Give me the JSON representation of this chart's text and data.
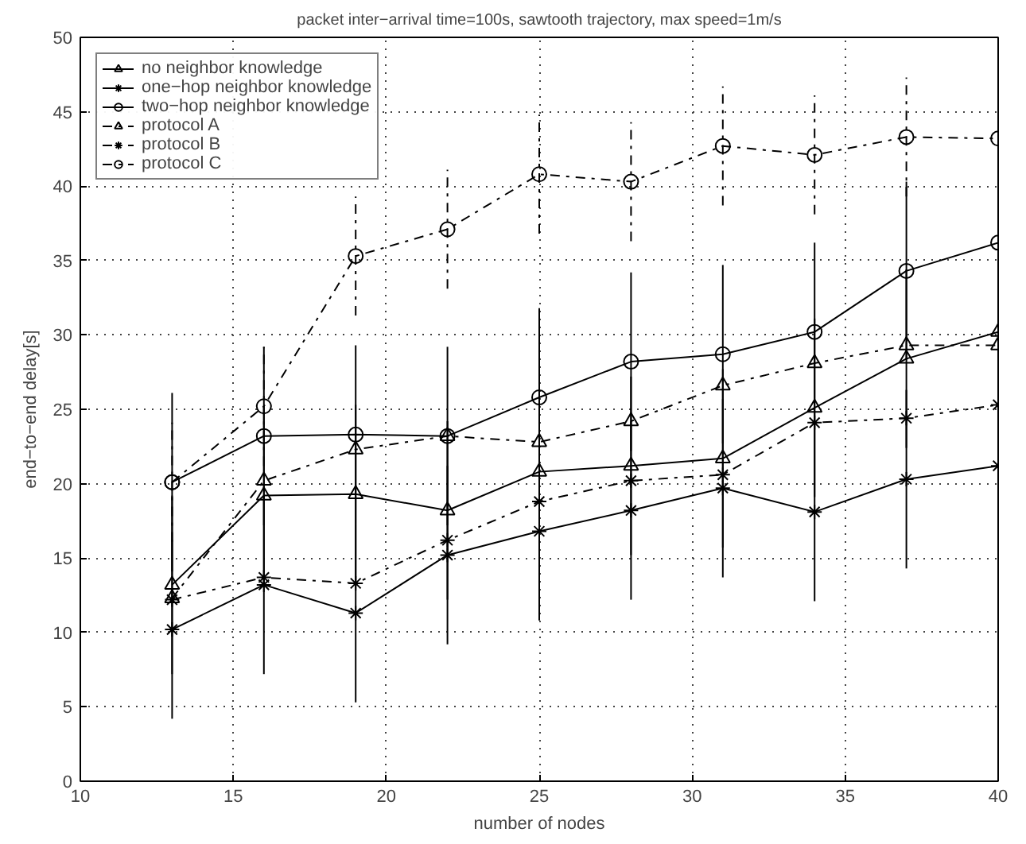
{
  "chart_data": {
    "type": "line",
    "title": "packet inter−arrival time=100s, sawtooth trajectory, max speed=1m/s",
    "xlabel": "number of nodes",
    "ylabel": "end−to−end delay[s]",
    "x": [
      13,
      16,
      19,
      22,
      25,
      28,
      31,
      34,
      37,
      40
    ],
    "xlim": [
      10,
      40
    ],
    "xticks": [
      10,
      15,
      20,
      25,
      30,
      35,
      40
    ],
    "ylim": [
      0,
      50
    ],
    "yticks": [
      0,
      5,
      10,
      15,
      20,
      25,
      30,
      35,
      40,
      45,
      50
    ],
    "grid": true,
    "legend": "top left",
    "series": [
      {
        "name": "no neighbor knowledge",
        "color": "#000000",
        "marker": "triangle",
        "line_style": "solid",
        "values": [
          13.2,
          19.2,
          19.3,
          18.2,
          20.8,
          21.2,
          21.7,
          25.1,
          28.4,
          30.2
        ],
        "errors": [
          6,
          6,
          6,
          6,
          6,
          6,
          6,
          6,
          6,
          6
        ]
      },
      {
        "name": "one−hop neighbor knowledge",
        "color": "#000000",
        "marker": "cross",
        "line_style": "solid",
        "values": [
          10.2,
          13.2,
          11.3,
          15.2,
          16.8,
          18.2,
          19.7,
          18.1,
          20.3,
          21.2
        ],
        "errors": [
          6,
          6,
          6,
          6,
          6,
          6,
          6,
          6,
          6,
          6
        ]
      },
      {
        "name": "two−hop neighbor knowledge",
        "color": "#000000",
        "marker": "circle",
        "line_style": "solid",
        "values": [
          20.1,
          23.2,
          23.3,
          23.2,
          25.8,
          28.2,
          28.7,
          30.2,
          34.3,
          36.2
        ],
        "errors": [
          6,
          6,
          6,
          6,
          6,
          6,
          6,
          6,
          6,
          6
        ]
      },
      {
        "name": "protocol A",
        "color": "#000000",
        "marker": "triangle",
        "line_style": "dashdot",
        "values": [
          12.3,
          20.2,
          22.3,
          23.2,
          22.8,
          24.2,
          26.6,
          28.1,
          29.3,
          29.3
        ]
      },
      {
        "name": "protocol B",
        "color": "#000000",
        "marker": "cross",
        "line_style": "dashdot",
        "values": [
          12.2,
          13.7,
          13.3,
          16.2,
          18.8,
          20.2,
          20.6,
          24.1,
          24.4,
          25.3
        ]
      },
      {
        "name": "protocol C",
        "color": "#000000",
        "marker": "circle",
        "line_style": "dashdot",
        "values": [
          20.1,
          25.2,
          35.3,
          37.1,
          40.8,
          40.3,
          42.7,
          42.1,
          43.3,
          43.2
        ],
        "errors": [
          4,
          4,
          4,
          4,
          4,
          4,
          4,
          4,
          4,
          4
        ]
      }
    ]
  }
}
